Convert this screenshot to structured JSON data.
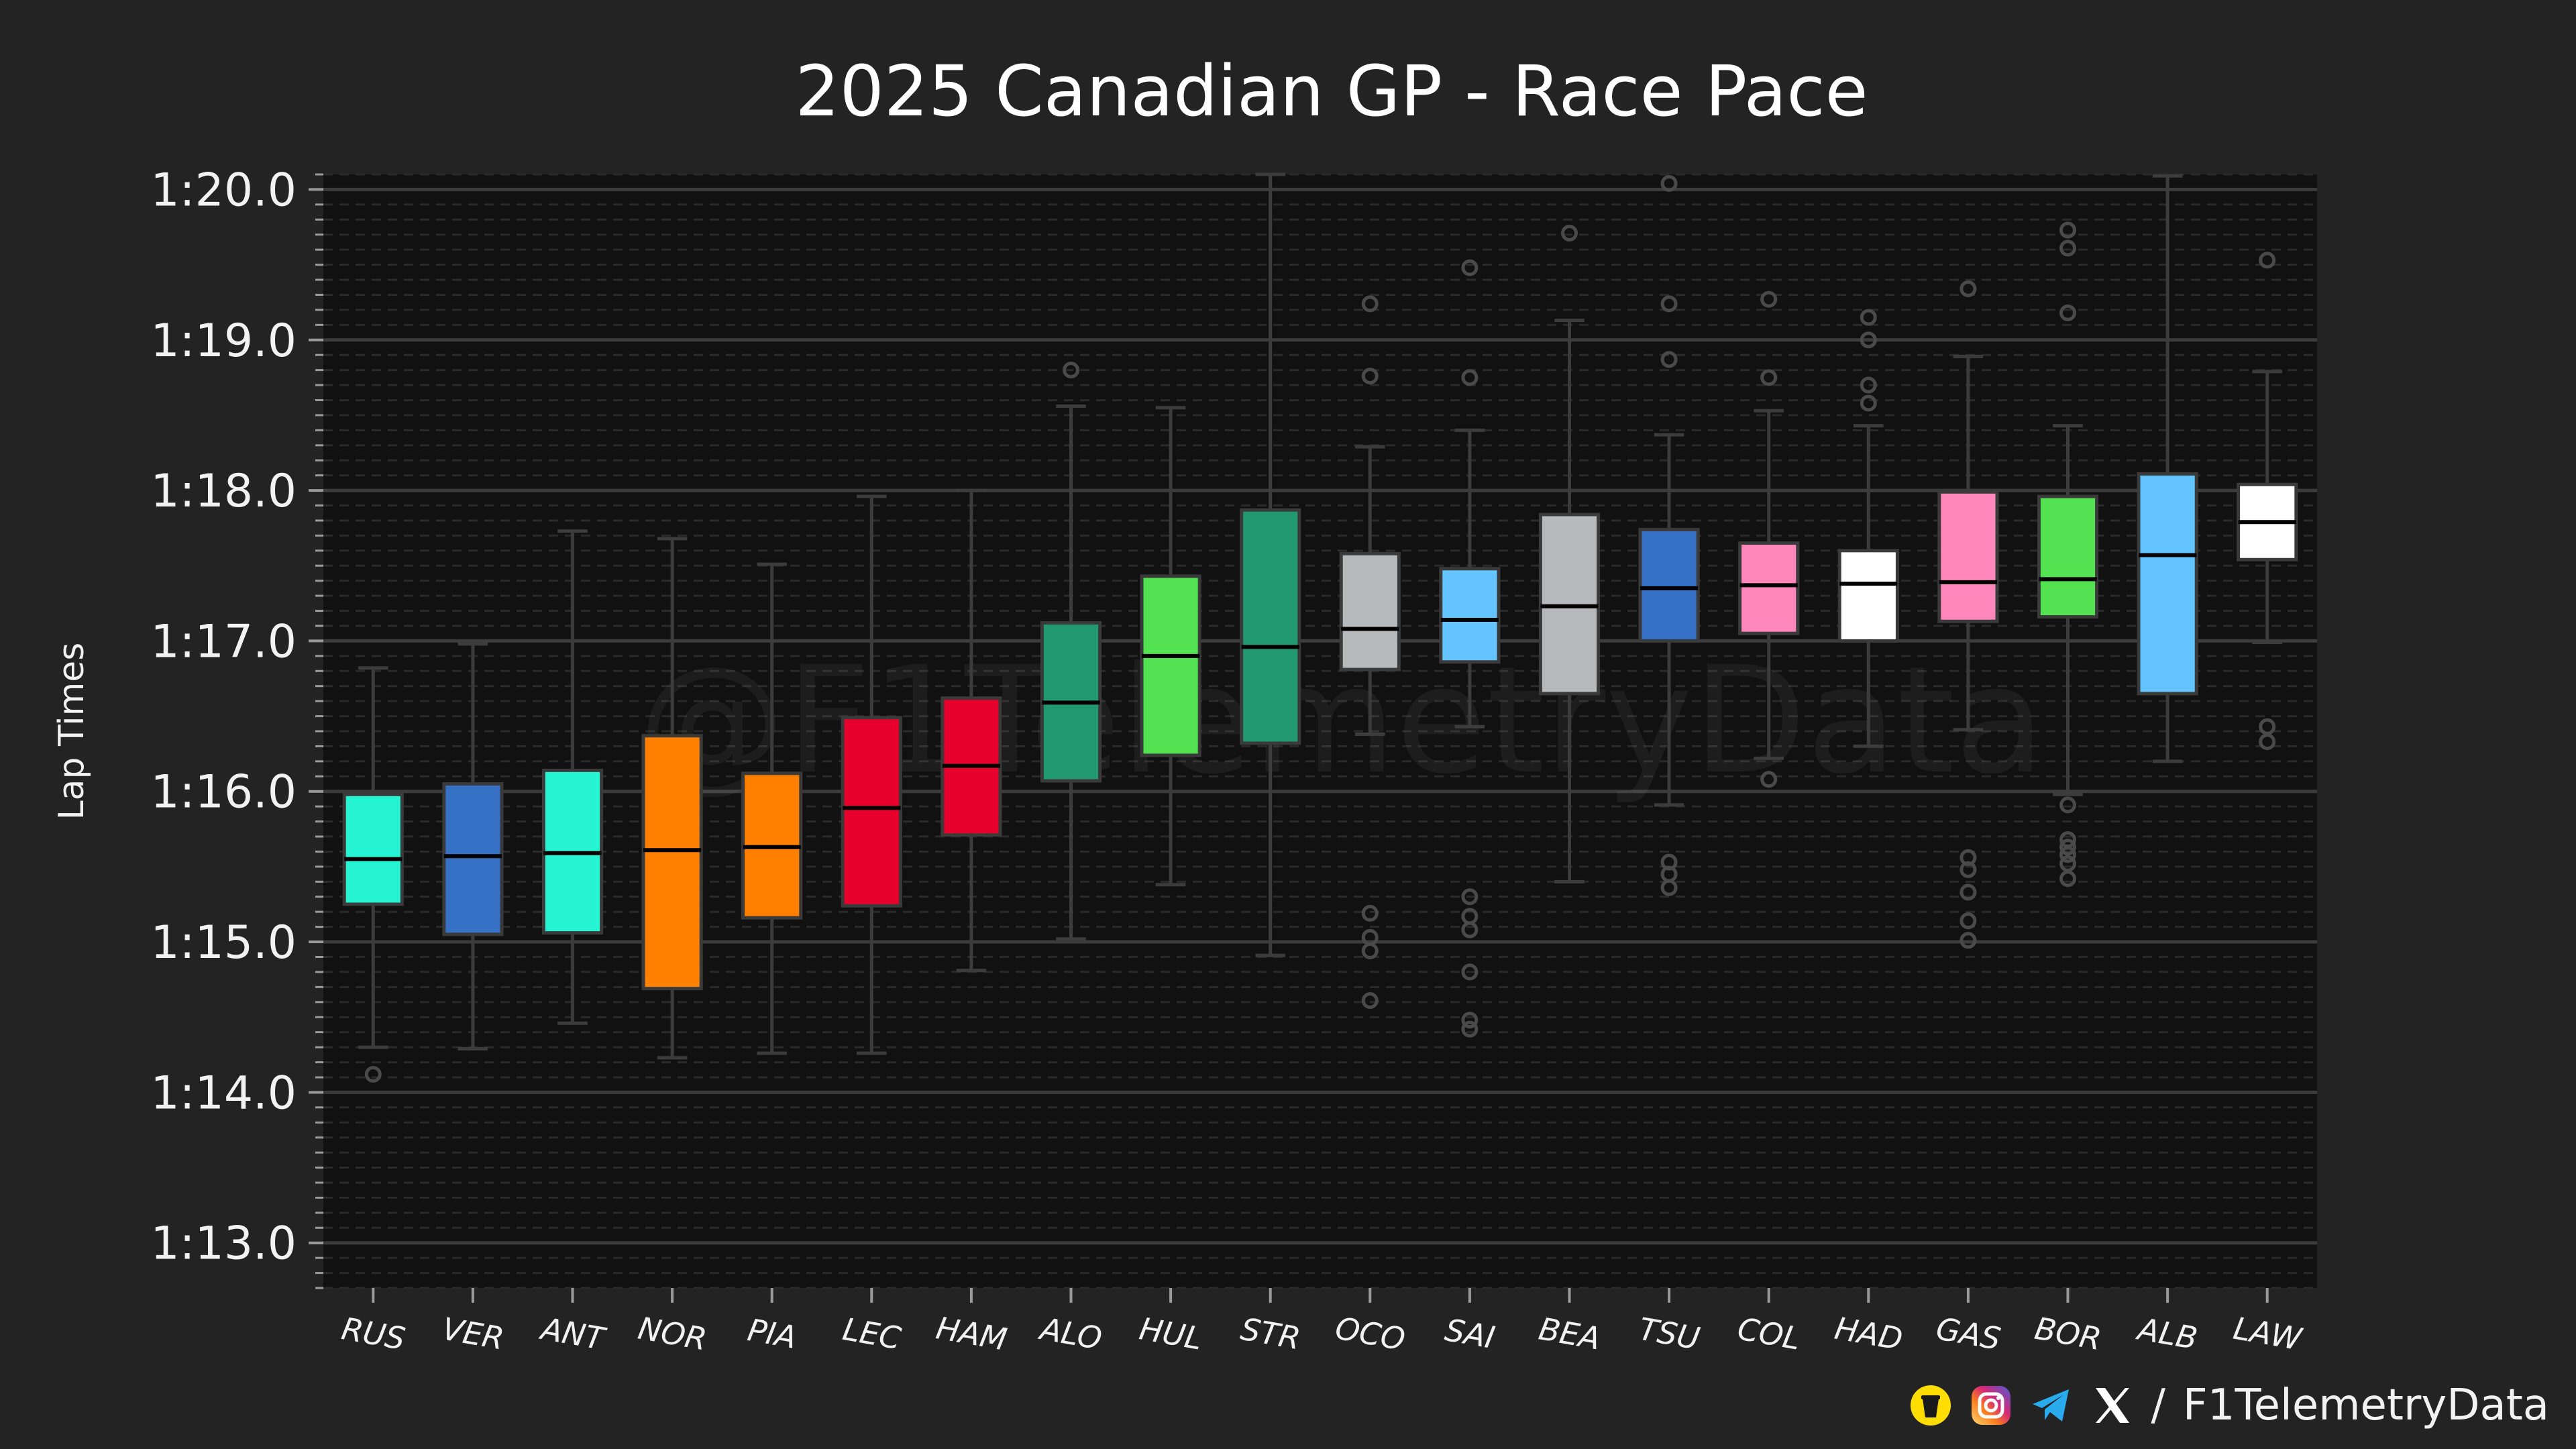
{
  "chart_data": {
    "type": "box",
    "title": "2025 Canadian GP - Race Pace",
    "ylabel": "Lap Times",
    "xlabel": "",
    "yticks": [
      73,
      74,
      75,
      76,
      77,
      78,
      79,
      80
    ],
    "ytick_labels": [
      "1:13.0",
      "1:14.0",
      "1:15.0",
      "1:16.0",
      "1:17.0",
      "1:18.0",
      "1:19.0",
      "1:20.0"
    ],
    "ylim": [
      72.7,
      80.1
    ],
    "grid": true,
    "categories": [
      "RUS",
      "VER",
      "ANT",
      "NOR",
      "PIA",
      "LEC",
      "HAM",
      "ALO",
      "HUL",
      "STR",
      "OCO",
      "SAI",
      "BEA",
      "TSU",
      "COL",
      "HAD",
      "GAS",
      "BOR",
      "ALB",
      "LAW"
    ],
    "boxes": [
      {
        "driver": "RUS",
        "color": "#27F4D2",
        "whislo": 74.3,
        "q1": 75.25,
        "med": 75.55,
        "q3": 75.98,
        "whishi": 76.82,
        "fliers": [
          74.12
        ]
      },
      {
        "driver": "VER",
        "color": "#3671C6",
        "whislo": 74.29,
        "q1": 75.05,
        "med": 75.57,
        "q3": 76.05,
        "whishi": 76.98,
        "fliers": []
      },
      {
        "driver": "ANT",
        "color": "#27F4D2",
        "whislo": 74.46,
        "q1": 75.06,
        "med": 75.59,
        "q3": 76.14,
        "whishi": 77.73,
        "fliers": []
      },
      {
        "driver": "NOR",
        "color": "#FF8000",
        "whislo": 74.23,
        "q1": 74.69,
        "med": 75.61,
        "q3": 76.37,
        "whishi": 77.68,
        "fliers": []
      },
      {
        "driver": "PIA",
        "color": "#FF8000",
        "whislo": 74.26,
        "q1": 75.16,
        "med": 75.63,
        "q3": 76.12,
        "whishi": 77.51,
        "fliers": []
      },
      {
        "driver": "LEC",
        "color": "#E8002D",
        "whislo": 74.26,
        "q1": 75.24,
        "med": 75.89,
        "q3": 76.49,
        "whishi": 77.96,
        "fliers": []
      },
      {
        "driver": "HAM",
        "color": "#E8002D",
        "whislo": 74.81,
        "q1": 75.71,
        "med": 76.17,
        "q3": 76.62,
        "whishi": 78.0,
        "fliers": []
      },
      {
        "driver": "ALO",
        "color": "#229971",
        "whislo": 75.02,
        "q1": 76.07,
        "med": 76.59,
        "q3": 77.12,
        "whishi": 78.56,
        "fliers": [
          78.8
        ]
      },
      {
        "driver": "HUL",
        "color": "#52E252",
        "whislo": 75.38,
        "q1": 76.24,
        "med": 76.9,
        "q3": 77.43,
        "whishi": 78.55,
        "fliers": []
      },
      {
        "driver": "STR",
        "color": "#229971",
        "whislo": 74.91,
        "q1": 76.32,
        "med": 76.96,
        "q3": 77.87,
        "whishi": 80.1,
        "fliers": []
      },
      {
        "driver": "OCO",
        "color": "#B6BABD",
        "whislo": 76.38,
        "q1": 76.81,
        "med": 77.08,
        "q3": 77.58,
        "whishi": 78.29,
        "fliers": [
          79.24,
          78.76,
          75.19,
          75.03,
          74.94,
          74.61
        ]
      },
      {
        "driver": "SAI",
        "color": "#64C4FF",
        "whislo": 76.43,
        "q1": 76.86,
        "med": 77.14,
        "q3": 77.48,
        "whishi": 78.4,
        "fliers": [
          79.48,
          78.75,
          75.3,
          75.17,
          75.08,
          74.8,
          74.48,
          74.42
        ]
      },
      {
        "driver": "BEA",
        "color": "#B6BABD",
        "whislo": 75.4,
        "q1": 76.65,
        "med": 77.23,
        "q3": 77.84,
        "whishi": 79.13,
        "fliers": [
          79.71
        ]
      },
      {
        "driver": "TSU",
        "color": "#3671C6",
        "whislo": 75.91,
        "q1": 77.0,
        "med": 77.35,
        "q3": 77.74,
        "whishi": 78.37,
        "fliers": [
          80.04,
          79.24,
          78.87,
          75.53,
          75.45,
          75.36
        ]
      },
      {
        "driver": "COL",
        "color": "#FF87BC",
        "whislo": 76.22,
        "q1": 77.05,
        "med": 77.37,
        "q3": 77.65,
        "whishi": 78.53,
        "fliers": [
          79.27,
          78.75,
          76.08
        ]
      },
      {
        "driver": "HAD",
        "color": "#FFFFFF",
        "whislo": 76.3,
        "q1": 77.0,
        "med": 77.38,
        "q3": 77.6,
        "whishi": 78.43,
        "fliers": [
          79.15,
          79.0,
          78.7,
          78.58
        ]
      },
      {
        "driver": "GAS",
        "color": "#FF87BC",
        "whislo": 76.41,
        "q1": 77.13,
        "med": 77.39,
        "q3": 77.99,
        "whishi": 78.89,
        "fliers": [
          79.34,
          75.56,
          75.48,
          75.33,
          75.14,
          75.01
        ]
      },
      {
        "driver": "BOR",
        "color": "#52E252",
        "whislo": 75.98,
        "q1": 77.16,
        "med": 77.41,
        "q3": 77.96,
        "whishi": 78.43,
        "fliers": [
          79.73,
          79.61,
          79.18,
          75.91,
          75.68,
          75.63,
          75.58,
          75.52,
          75.42
        ]
      },
      {
        "driver": "ALB",
        "color": "#64C4FF",
        "whislo": 76.2,
        "q1": 76.65,
        "med": 77.57,
        "q3": 78.11,
        "whishi": 80.09,
        "fliers": []
      },
      {
        "driver": "LAW",
        "color": "#FFFFFF",
        "whislo": 76.99,
        "q1": 77.54,
        "med": 77.79,
        "q3": 78.04,
        "whishi": 78.79,
        "fliers": [
          79.53,
          76.43,
          76.33
        ]
      }
    ]
  },
  "watermark": "@F1TelemetryData",
  "footer": {
    "separator": "/",
    "handle": "F1TelemetryData",
    "icons": [
      "coffee-cup-icon",
      "instagram-icon",
      "telegram-icon",
      "x-logo-icon"
    ]
  },
  "colors": {
    "background": "#232323",
    "plot_background": "#111111",
    "grid_major": "#3c3c3c",
    "grid_minor": "#2a2a2a",
    "whisker": "#3c3c3c"
  }
}
